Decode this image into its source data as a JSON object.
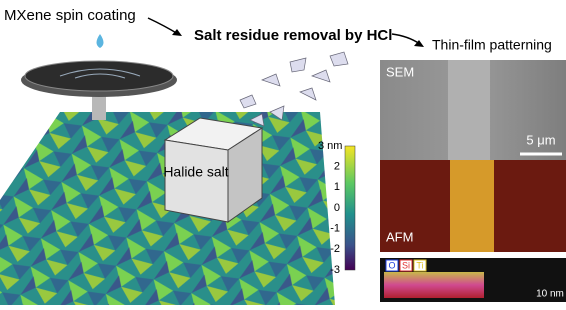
{
  "steps": {
    "step1": "MXene spin coating",
    "step2": "Salt residue removal by HCl",
    "step3": "Thin-film patterning"
  },
  "cube_label": "Halide salt",
  "colorbar": {
    "ticks": [
      "3 nm",
      "2",
      "1",
      "0",
      "-1",
      "-2",
      "-3"
    ]
  },
  "panels": {
    "sem": "SEM",
    "sem_scale": "5 μm",
    "afm": "AFM",
    "eds_legend": [
      "O",
      "Si",
      "Ti"
    ],
    "eds_scale": "10 nm"
  }
}
